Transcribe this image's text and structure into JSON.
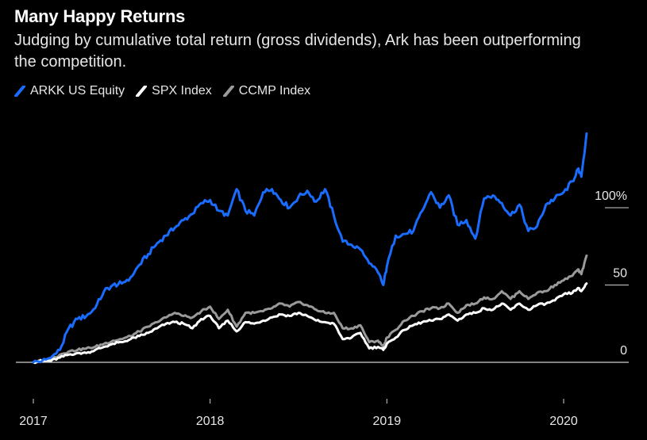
{
  "header": {
    "title": "Many Happy Returns",
    "subtitle": "Judging by cumulative total return (gross dividends), Ark has been outperforming the competition."
  },
  "legend": [
    {
      "label": "ARKK US Equity",
      "color": "#1a6cff"
    },
    {
      "label": "SPX Index",
      "color": "#ffffff"
    },
    {
      "label": "CCMP Index",
      "color": "#9a9a9a"
    }
  ],
  "chart_data": {
    "type": "line",
    "title": "Many Happy Returns",
    "subtitle": "Judging by cumulative total return (gross dividends), Ark has been outperforming the competition.",
    "xlabel": "",
    "ylabel": "",
    "unit": "%",
    "xlim": [
      2017.0,
      2020.22
    ],
    "ylim": [
      -10,
      155
    ],
    "x_ticks": [
      {
        "value": 2017,
        "label": "2017"
      },
      {
        "value": 2018,
        "label": "2018"
      },
      {
        "value": 2019,
        "label": "2019"
      },
      {
        "value": 2020,
        "label": "2020"
      }
    ],
    "y_ticks": [
      {
        "value": 0,
        "label": "0"
      },
      {
        "value": 50,
        "label": "50"
      },
      {
        "value": 100,
        "label": "100%"
      }
    ],
    "x": [
      2017.0,
      2017.05,
      2017.1,
      2017.15,
      2017.2,
      2017.25,
      2017.3,
      2017.35,
      2017.4,
      2017.45,
      2017.5,
      2017.55,
      2017.6,
      2017.65,
      2017.7,
      2017.75,
      2017.8,
      2017.85,
      2017.9,
      2017.95,
      2018.0,
      2018.05,
      2018.1,
      2018.15,
      2018.2,
      2018.25,
      2018.3,
      2018.35,
      2018.4,
      2018.45,
      2018.5,
      2018.55,
      2018.6,
      2018.65,
      2018.7,
      2018.75,
      2018.8,
      2018.85,
      2018.9,
      2018.95,
      2018.98,
      2019.0,
      2019.05,
      2019.1,
      2019.15,
      2019.2,
      2019.25,
      2019.3,
      2019.35,
      2019.4,
      2019.45,
      2019.5,
      2019.55,
      2019.6,
      2019.65,
      2019.7,
      2019.75,
      2019.8,
      2019.85,
      2019.9,
      2019.95,
      2020.0,
      2020.05,
      2020.08,
      2020.1,
      2020.13
    ],
    "series": [
      {
        "name": "ARKK US Equity",
        "color": "#1a6cff",
        "values": [
          0,
          1,
          3,
          8,
          22,
          28,
          30,
          35,
          46,
          50,
          51,
          55,
          63,
          70,
          77,
          82,
          87,
          92,
          96,
          103,
          105,
          98,
          95,
          112,
          98,
          95,
          110,
          112,
          105,
          100,
          107,
          111,
          104,
          112,
          95,
          78,
          76,
          73,
          64,
          58,
          50,
          62,
          82,
          83,
          85,
          98,
          110,
          100,
          108,
          89,
          92,
          80,
          106,
          108,
          103,
          95,
          102,
          85,
          88,
          102,
          106,
          110,
          117,
          125,
          120,
          148
        ]
      },
      {
        "name": "SPX Index",
        "color": "#ffffff",
        "values": [
          0,
          1,
          1,
          3,
          5,
          6,
          6,
          8,
          10,
          12,
          13,
          15,
          17,
          19,
          22,
          25,
          26,
          25,
          22,
          28,
          30,
          22,
          27,
          20,
          26,
          25,
          27,
          29,
          31,
          30,
          32,
          30,
          27,
          26,
          25,
          15,
          16,
          19,
          9,
          10,
          8,
          12,
          16,
          21,
          24,
          26,
          27,
          28,
          31,
          27,
          31,
          32,
          35,
          34,
          38,
          34,
          38,
          34,
          37,
          38,
          40,
          44,
          45,
          48,
          46,
          51
        ]
      },
      {
        "name": "CCMP Index",
        "color": "#9a9a9a",
        "values": [
          0,
          1,
          2,
          5,
          7,
          8,
          9,
          10,
          12,
          14,
          15,
          17,
          20,
          23,
          26,
          29,
          32,
          30,
          29,
          33,
          36,
          28,
          34,
          23,
          32,
          32,
          33,
          35,
          38,
          36,
          39,
          37,
          34,
          32,
          32,
          22,
          22,
          24,
          13,
          14,
          10,
          16,
          21,
          27,
          30,
          33,
          35,
          35,
          38,
          32,
          37,
          38,
          42,
          41,
          46,
          41,
          46,
          41,
          45,
          46,
          50,
          53,
          56,
          60,
          57,
          69
        ]
      }
    ]
  }
}
